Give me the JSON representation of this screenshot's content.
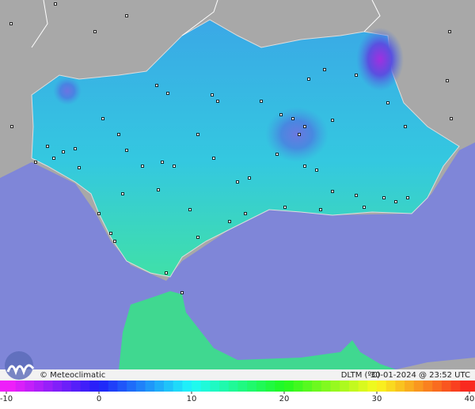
{
  "brand": "© Meteoclimatic",
  "legend": {
    "variable": "DLTM (ºC)",
    "timestamp": "30-01-2024 @ 23:52 UTC",
    "range": [
      -10,
      40
    ],
    "ticks": [
      -10,
      0,
      10,
      20,
      30,
      40
    ]
  }
}
